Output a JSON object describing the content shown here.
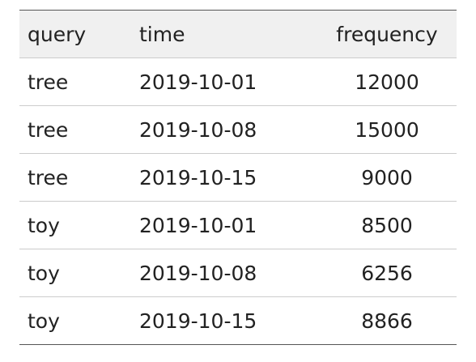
{
  "table": {
    "header": [
      "query",
      "time",
      "frequency"
    ],
    "rows": [
      [
        "tree",
        "2019-10-01",
        12000
      ],
      [
        "tree",
        "2019-10-08",
        15000
      ],
      [
        "tree",
        "2019-10-15",
        9000
      ],
      [
        "toy",
        "2019-10-01",
        8500
      ],
      [
        "toy",
        "2019-10-08",
        6256
      ],
      [
        "toy",
        "2019-10-15",
        8866
      ]
    ]
  }
}
